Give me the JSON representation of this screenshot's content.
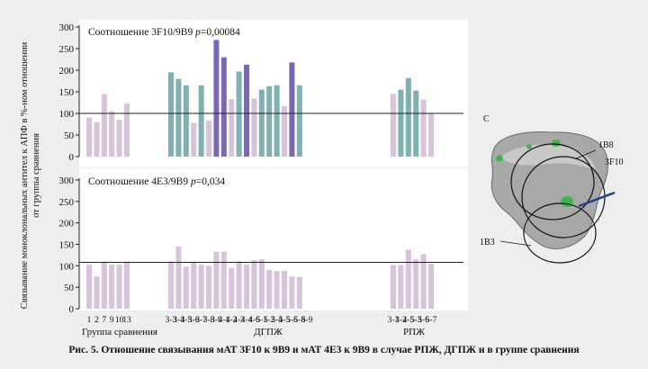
{
  "caption": "Рис. 5. Отношение связывания мАТ 3F10 к 9В9 и мАТ 4Е3 к 9В9 в случае РПЖ, ДГПЖ и в группе сравнения",
  "colors": {
    "pink": "#d9c3dc",
    "teal": "#7fb0b3",
    "purple": "#7a68b7",
    "panel": "#ffffff"
  },
  "panel_c": {
    "letter": "C",
    "labels": [
      "1B8",
      "3F10",
      "1B3"
    ]
  },
  "chart_data": [
    {
      "type": "bar",
      "title": "Соотношение 3F10/9В9",
      "p_label": "p",
      "p_value": "=0,00084",
      "ylabel": "Связывание моноклональных антител к АПФ в %-ном отношении от группы сравнения",
      "ylim": [
        0,
        300
      ],
      "yticks": [
        "0",
        "50",
        "100",
        "150",
        "200",
        "250",
        "300"
      ],
      "reference_line": 100,
      "groups": [
        {
          "name": "Группа сравнения",
          "categories": [
            "1",
            "2",
            "7",
            "9",
            "10",
            "13"
          ],
          "values": [
            90,
            80,
            145,
            105,
            85,
            123
          ],
          "colors": [
            "pink",
            "pink",
            "pink",
            "pink",
            "pink",
            "pink"
          ]
        },
        {
          "name": "ДГПЖ",
          "categories": [
            "3-3",
            "3-4",
            "3-5",
            "3-6",
            "3-7",
            "3-8",
            "3-9",
            "4-1",
            "4-2",
            "4-3",
            "4-4",
            "4-6",
            "5-1",
            "5-2",
            "5-4",
            "5-5",
            "5-6",
            "5-8",
            "5-9"
          ],
          "values": [
            195,
            180,
            165,
            78,
            165,
            83,
            270,
            230,
            133,
            197,
            213,
            135,
            155,
            163,
            165,
            117,
            218,
            165,
            0
          ],
          "colors": [
            "teal",
            "teal",
            "teal",
            "pink",
            "teal",
            "pink",
            "purple",
            "purple",
            "pink",
            "teal",
            "purple",
            "pink",
            "teal",
            "teal",
            "teal",
            "pink",
            "purple",
            "teal",
            "pink"
          ]
        },
        {
          "name": "РПЖ",
          "categories": [
            "3-1",
            "3-2",
            "4-5",
            "5-3",
            "5-6",
            "5-7"
          ],
          "values": [
            145,
            155,
            182,
            153,
            132,
            100
          ],
          "colors": [
            "pink",
            "teal",
            "teal",
            "teal",
            "pink",
            "pink"
          ]
        }
      ]
    },
    {
      "type": "bar",
      "title": "Соотношение 4Е3/9В9",
      "p_label": "p",
      "p_value": "=0,034",
      "ylim": [
        0,
        300
      ],
      "yticks": [
        "0",
        "50",
        "100",
        "150",
        "200",
        "250",
        "300"
      ],
      "reference_line": 108,
      "groups": [
        {
          "name": "Группа сравнения",
          "categories": [
            "1",
            "2",
            "7",
            "9",
            "10",
            "13"
          ],
          "values": [
            103,
            75,
            110,
            103,
            103,
            110
          ],
          "colors": [
            "pink",
            "pink",
            "pink",
            "pink",
            "pink",
            "pink"
          ]
        },
        {
          "name": "ДГПЖ",
          "categories": [
            "3-3",
            "3-4",
            "3-5",
            "3-6",
            "3-7",
            "3-8",
            "3-9",
            "4-1",
            "4-2",
            "4-3",
            "4-4",
            "4-6",
            "5-1",
            "5-2",
            "5-4",
            "5-5",
            "5-6",
            "5-8",
            "5-9"
          ],
          "values": [
            110,
            145,
            98,
            108,
            103,
            100,
            133,
            133,
            95,
            110,
            103,
            113,
            115,
            90,
            88,
            88,
            75,
            74,
            0
          ],
          "colors": [
            "pink",
            "pink",
            "pink",
            "pink",
            "pink",
            "pink",
            "pink",
            "pink",
            "pink",
            "pink",
            "pink",
            "pink",
            "pink",
            "pink",
            "pink",
            "pink",
            "pink",
            "pink",
            "pink"
          ]
        },
        {
          "name": "РПЖ",
          "categories": [
            "3-1",
            "3-2",
            "4-5",
            "5-3",
            "5-6",
            "5-7"
          ],
          "values": [
            102,
            102,
            138,
            115,
            127,
            105
          ],
          "colors": [
            "pink",
            "pink",
            "pink",
            "pink",
            "pink",
            "pink"
          ]
        }
      ]
    }
  ]
}
